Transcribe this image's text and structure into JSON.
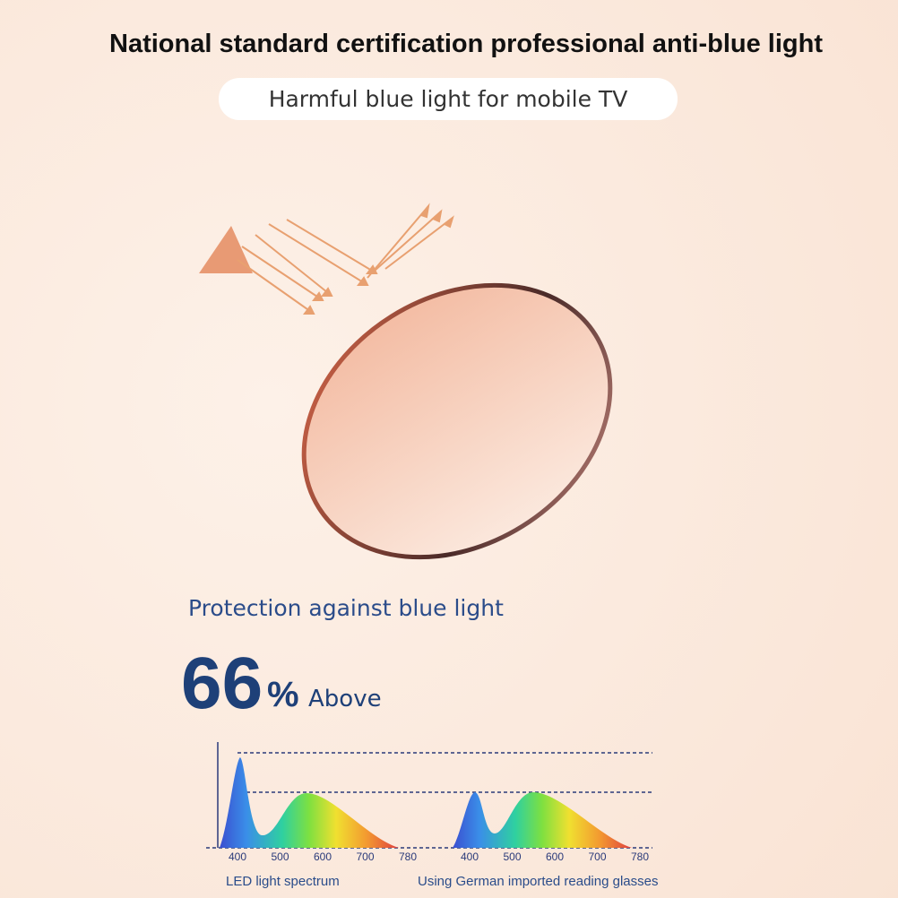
{
  "header": {
    "title": "National standard certification professional anti-blue light",
    "subtitle": "Harmful blue light for mobile TV"
  },
  "protection": {
    "label": "Protection against blue light",
    "number": "66",
    "sign": "%",
    "suffix": "Above"
  },
  "spectra": [
    {
      "ticks": [
        400,
        500,
        600,
        700,
        780
      ],
      "caption": "LED light spectrum"
    },
    {
      "ticks": [
        400,
        500,
        600,
        700,
        780
      ],
      "caption": "Using German imported reading glasses"
    }
  ]
}
